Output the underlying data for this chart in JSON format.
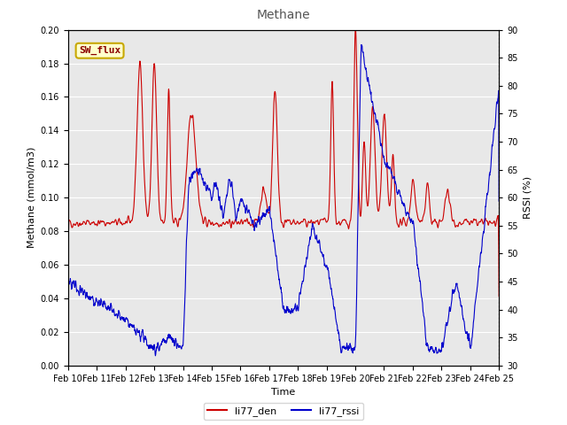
{
  "title": "Methane",
  "xlabel": "Time",
  "ylabel_left": "Methane (mmol/m3)",
  "ylabel_right": "RSSI (%)",
  "ylim_left": [
    0.0,
    0.2
  ],
  "ylim_right": [
    30,
    90
  ],
  "xlim": [
    0,
    15
  ],
  "x_tick_labels": [
    "Feb 10",
    "Feb 11",
    "Feb 12",
    "Feb 13",
    "Feb 14",
    "Feb 15",
    "Feb 16",
    "Feb 17",
    "Feb 18",
    "Feb 19",
    "Feb 20",
    "Feb 21",
    "Feb 22",
    "Feb 23",
    "Feb 24",
    "Feb 25"
  ],
  "bg_color": "#e8e8e8",
  "fig_bg_color": "#ffffff",
  "legend_label_red": "li77_den",
  "legend_label_blue": "li77_rssi",
  "sw_flux_label": "SW_flux",
  "red_color": "#cc0000",
  "blue_color": "#0000cc",
  "title_fontsize": 10,
  "axis_label_fontsize": 8,
  "tick_fontsize": 7
}
